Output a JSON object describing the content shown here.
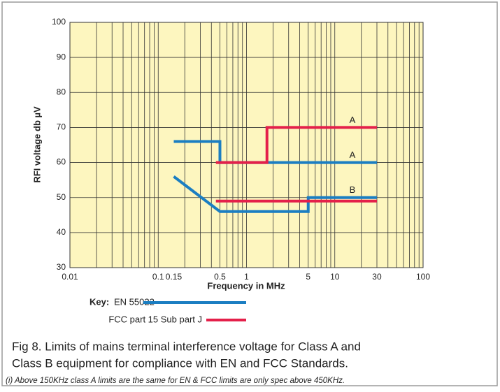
{
  "chart_data": {
    "type": "line",
    "x_label": "Frequency in MHz",
    "y_label": "RFI voltage db µV",
    "xscale": "log",
    "xlim": [
      0.01,
      100
    ],
    "ylim": [
      30,
      100
    ],
    "xticks": [
      0.01,
      0.1,
      0.15,
      0.5,
      1,
      5,
      10,
      30,
      100
    ],
    "yticks": [
      30,
      40,
      50,
      60,
      70,
      80,
      90,
      100
    ],
    "xgrid": [
      0.01,
      0.02,
      0.03,
      0.04,
      0.05,
      0.06,
      0.07,
      0.08,
      0.09,
      0.1,
      0.2,
      0.3,
      0.4,
      0.5,
      0.6,
      0.7,
      0.8,
      0.9,
      1,
      2,
      3,
      4,
      5,
      6,
      7,
      8,
      9,
      10,
      20,
      30,
      40,
      50,
      60,
      70,
      80,
      90,
      100
    ],
    "grid": true,
    "legend_title": "Key:",
    "series": [
      {
        "name": "EN 55022",
        "color": "#1b7ec2",
        "lines": [
          {
            "label": "A",
            "x": [
              0.15,
              0.5,
              0.5,
              30
            ],
            "values": [
              66,
              66,
              60,
              60
            ]
          },
          {
            "label": "B",
            "x": [
              0.15,
              0.5,
              5,
              5,
              30
            ],
            "values": [
              56,
              46,
              46,
              50,
              50
            ]
          }
        ]
      },
      {
        "name": "FCC part  15 Sub part J",
        "color": "#e4204a",
        "lines": [
          {
            "label": "A",
            "x": [
              0.45,
              1.705,
              1.705,
              30
            ],
            "values": [
              60,
              60,
              70,
              70
            ]
          },
          {
            "x": [
              0.45,
              30
            ],
            "values": [
              49,
              49
            ]
          }
        ]
      }
    ]
  },
  "caption": [
    "Fig 8. Limits of mains terminal interference voltage for Class A and",
    "Class B equipment for compliance with EN and FCC Standards."
  ],
  "footnote": "(i) Above 150KHz class A limits are the same for EN & FCC limits are only spec above 450KHz."
}
